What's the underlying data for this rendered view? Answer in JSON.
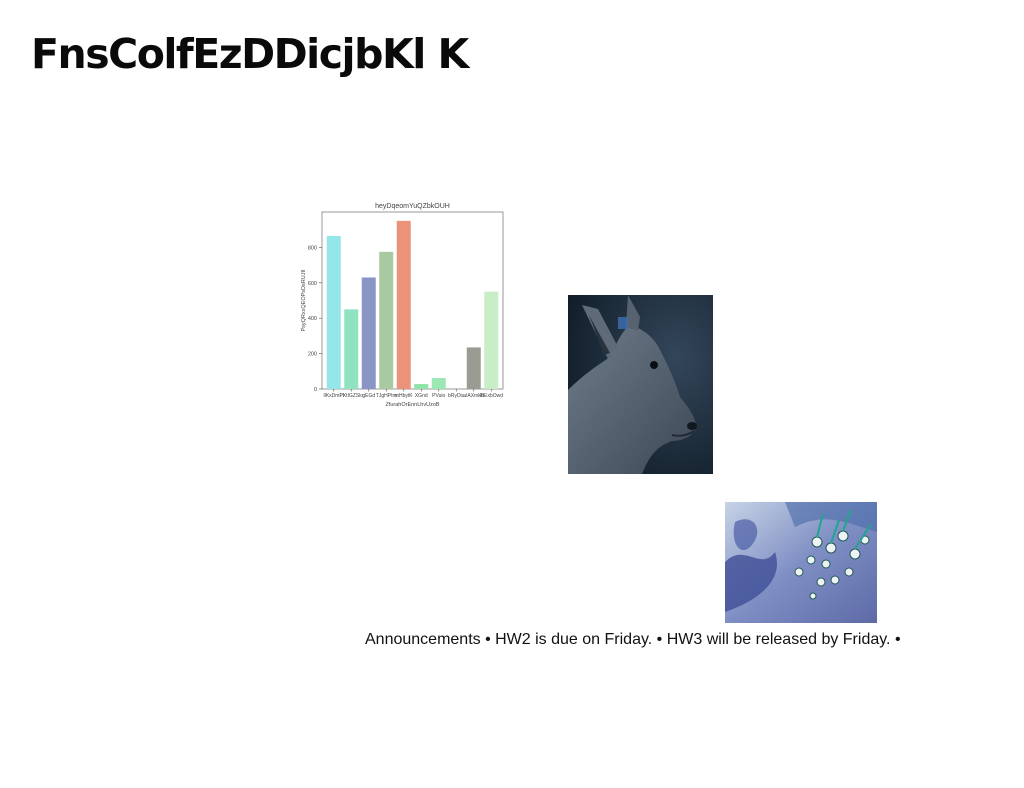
{
  "page": {
    "title": "FnsColfEzDDicjbKl K"
  },
  "chart_data": {
    "type": "bar",
    "title": "heyDqeomYuQZbkOUH",
    "xlabel": "ZfurahOrEnnLhvUzoB",
    "ylabel": "PsyQRxxQEOPsDsRUJII",
    "categories": [
      "IlKxDmPI",
      "PXtIGZSlo",
      "gEGd",
      "TJgHPtm",
      "mHbytK",
      "XGnd",
      "PVuio",
      "bRyDiu",
      "ulAXmkB",
      "EtExbOwd"
    ],
    "values": [
      865,
      450,
      630,
      775,
      950,
      28,
      62,
      0,
      235,
      550
    ],
    "colors": [
      "#94e6e8",
      "#8fe3c0",
      "#8a95c6",
      "#9dc796",
      "#a9c9a0",
      "#eb937a",
      "#8fe3a8",
      "#8fe3a8",
      "#9a9c93",
      "#c8eec8"
    ],
    "bar_colors": [
      "#94e6e8",
      "#8fe3c0",
      "#8a95c6",
      "#a9c9a0",
      "#eb937a",
      "#8fe3a8",
      "#9be8b5",
      "#9be8b5",
      "#9a9c93",
      "#c8eec8"
    ],
    "yticks": [
      0,
      200,
      400,
      600,
      800
    ],
    "ylim": [
      0,
      1000
    ],
    "grid": false
  },
  "images": {
    "deer_icon": "deer-photo",
    "flower_icon": "flower-photo"
  },
  "announcement": {
    "text": "Announcements • HW2 is due on Friday. • HW3 will be released by Friday. •"
  }
}
